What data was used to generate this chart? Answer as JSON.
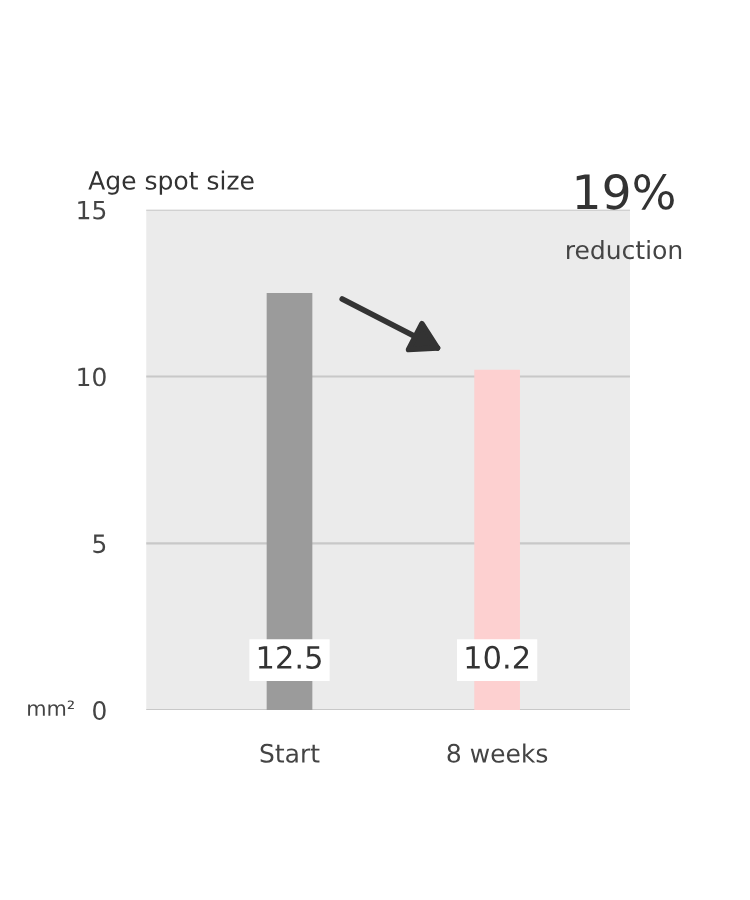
{
  "chart_data": {
    "type": "bar",
    "ylabel": "Age spot size",
    "categories": [
      "Start",
      "8 weeks"
    ],
    "values": [
      12.5,
      10.2
    ],
    "colors": [
      "#9b9b9b",
      "#fdd0d0"
    ],
    "ylim": [
      0,
      15
    ],
    "yticks": [
      0,
      5,
      10,
      15
    ],
    "grid": "y",
    "data_labels": true,
    "annotations": [
      "mm²",
      "19%",
      "reduction"
    ]
  }
}
